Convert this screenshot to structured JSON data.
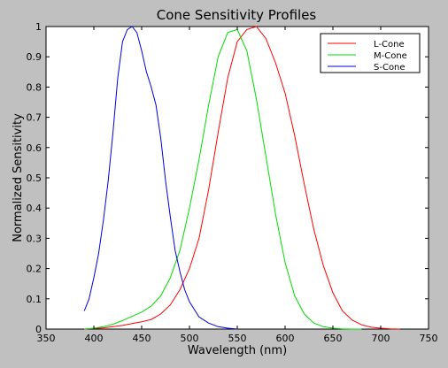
{
  "window": {
    "background": "#c0c0c0"
  },
  "chart_data": {
    "type": "line",
    "title": "Cone Sensitivity Profiles",
    "xlabel": "Wavelength (nm)",
    "ylabel": "Normalized Sensitivity",
    "xlim": [
      350,
      750
    ],
    "ylim": [
      0,
      1
    ],
    "xticks": [
      350,
      400,
      450,
      500,
      550,
      600,
      650,
      700,
      750
    ],
    "yticks": [
      0,
      0.1,
      0.2,
      0.3,
      0.4,
      0.5,
      0.6,
      0.7,
      0.8,
      0.9,
      1
    ],
    "xtick_labels": [
      "350",
      "400",
      "450",
      "500",
      "550",
      "600",
      "650",
      "700",
      "750"
    ],
    "ytick_labels": [
      "0",
      "0.1",
      "0.2",
      "0.3",
      "0.4",
      "0.5",
      "0.6",
      "0.7",
      "0.8",
      "0.9",
      "1"
    ],
    "grid": false,
    "legend_position": "top-right",
    "series": [
      {
        "name": "L-Cone",
        "color": "#ff0000",
        "x": [
          390,
          400,
          410,
          420,
          430,
          440,
          450,
          460,
          470,
          480,
          490,
          500,
          510,
          520,
          530,
          540,
          550,
          560,
          570,
          580,
          590,
          600,
          610,
          620,
          630,
          640,
          650,
          660,
          670,
          680,
          690,
          700,
          710,
          720
        ],
        "y": [
          0.0,
          0.002,
          0.004,
          0.008,
          0.012,
          0.018,
          0.024,
          0.032,
          0.05,
          0.08,
          0.13,
          0.2,
          0.3,
          0.46,
          0.65,
          0.83,
          0.95,
          0.99,
          1.0,
          0.96,
          0.88,
          0.78,
          0.64,
          0.48,
          0.33,
          0.21,
          0.12,
          0.06,
          0.03,
          0.014,
          0.006,
          0.003,
          0.001,
          0.0
        ]
      },
      {
        "name": "M-Cone",
        "color": "#00dd00",
        "x": [
          390,
          400,
          410,
          420,
          430,
          440,
          450,
          460,
          470,
          480,
          490,
          500,
          510,
          520,
          530,
          540,
          550,
          560,
          570,
          580,
          590,
          600,
          610,
          620,
          630,
          640,
          650,
          660,
          670,
          680
        ],
        "y": [
          0.0,
          0.003,
          0.008,
          0.016,
          0.028,
          0.042,
          0.056,
          0.076,
          0.11,
          0.17,
          0.26,
          0.4,
          0.56,
          0.74,
          0.9,
          0.98,
          0.99,
          0.92,
          0.76,
          0.57,
          0.38,
          0.22,
          0.11,
          0.05,
          0.02,
          0.008,
          0.003,
          0.001,
          0.0,
          0.0
        ]
      },
      {
        "name": "S-Cone",
        "color": "#0000dd",
        "x": [
          390,
          395,
          400,
          405,
          410,
          415,
          420,
          425,
          430,
          435,
          440,
          445,
          450,
          455,
          460,
          465,
          470,
          475,
          480,
          485,
          490,
          495,
          500,
          510,
          520,
          530,
          540,
          550
        ],
        "y": [
          0.06,
          0.1,
          0.17,
          0.25,
          0.36,
          0.49,
          0.65,
          0.83,
          0.95,
          0.99,
          1.0,
          0.98,
          0.92,
          0.85,
          0.8,
          0.74,
          0.63,
          0.49,
          0.37,
          0.26,
          0.19,
          0.13,
          0.09,
          0.04,
          0.02,
          0.008,
          0.003,
          0.0
        ]
      }
    ]
  }
}
